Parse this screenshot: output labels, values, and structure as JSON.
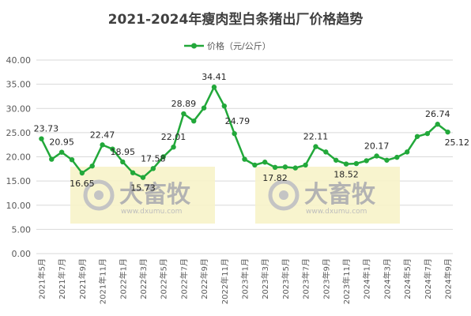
{
  "colors": {
    "series": "#22a83a",
    "grid": "#d9d9d9",
    "watermark_bg": "#f7f3c9"
  },
  "watermark": {
    "brand": "大畜牧",
    "url": "www.dxumu.com"
  },
  "chart_data": {
    "type": "line",
    "title": "2021-2024年瘦肉型白条猪出厂价格趋势",
    "legend": "top",
    "grid": true,
    "ylim": [
      0,
      40
    ],
    "yticks": [
      "0.00",
      "5.00",
      "10.00",
      "15.00",
      "20.00",
      "25.00",
      "30.00",
      "35.00",
      "40.00"
    ],
    "x_ticks": [
      "2021年5月",
      "2021年7月",
      "2021年9月",
      "2021年11月",
      "2022年1月",
      "2022年3月",
      "2022年5月",
      "2022年7月",
      "2022年9月",
      "2022年11月",
      "2023年1月",
      "2023年3月",
      "2023年5月",
      "2023年7月",
      "2023年9月",
      "2023年11月",
      "2024年1月",
      "2024年3月",
      "2024年5月",
      "2024年7月",
      "2024年9月"
    ],
    "series": [
      {
        "name": "价格（元/公斤）",
        "values": [
          23.73,
          19.5,
          20.95,
          19.4,
          16.65,
          18.1,
          22.47,
          21.6,
          18.95,
          16.7,
          15.73,
          17.58,
          20.0,
          22.01,
          28.89,
          27.4,
          30.1,
          34.41,
          30.5,
          24.79,
          19.5,
          18.3,
          18.9,
          17.82,
          17.9,
          17.7,
          18.3,
          22.11,
          21.0,
          19.3,
          18.52,
          18.6,
          19.2,
          20.17,
          19.3,
          19.9,
          21.0,
          24.2,
          24.8,
          26.74,
          25.12
        ]
      }
    ],
    "data_labels": [
      {
        "index": 0,
        "text": "23.73"
      },
      {
        "index": 2,
        "text": "20.95"
      },
      {
        "index": 4,
        "text": "16.65"
      },
      {
        "index": 6,
        "text": "22.47"
      },
      {
        "index": 8,
        "text": "18.95"
      },
      {
        "index": 10,
        "text": "15.73"
      },
      {
        "index": 11,
        "text": "17.58"
      },
      {
        "index": 13,
        "text": "22.01"
      },
      {
        "index": 14,
        "text": "28.89"
      },
      {
        "index": 17,
        "text": "34.41"
      },
      {
        "index": 19,
        "text": "24.79"
      },
      {
        "index": 23,
        "text": "17.82"
      },
      {
        "index": 27,
        "text": "22.11"
      },
      {
        "index": 30,
        "text": "18.52"
      },
      {
        "index": 33,
        "text": "20.17"
      },
      {
        "index": 39,
        "text": "26.74"
      },
      {
        "index": 40,
        "text": "25.12"
      }
    ]
  }
}
